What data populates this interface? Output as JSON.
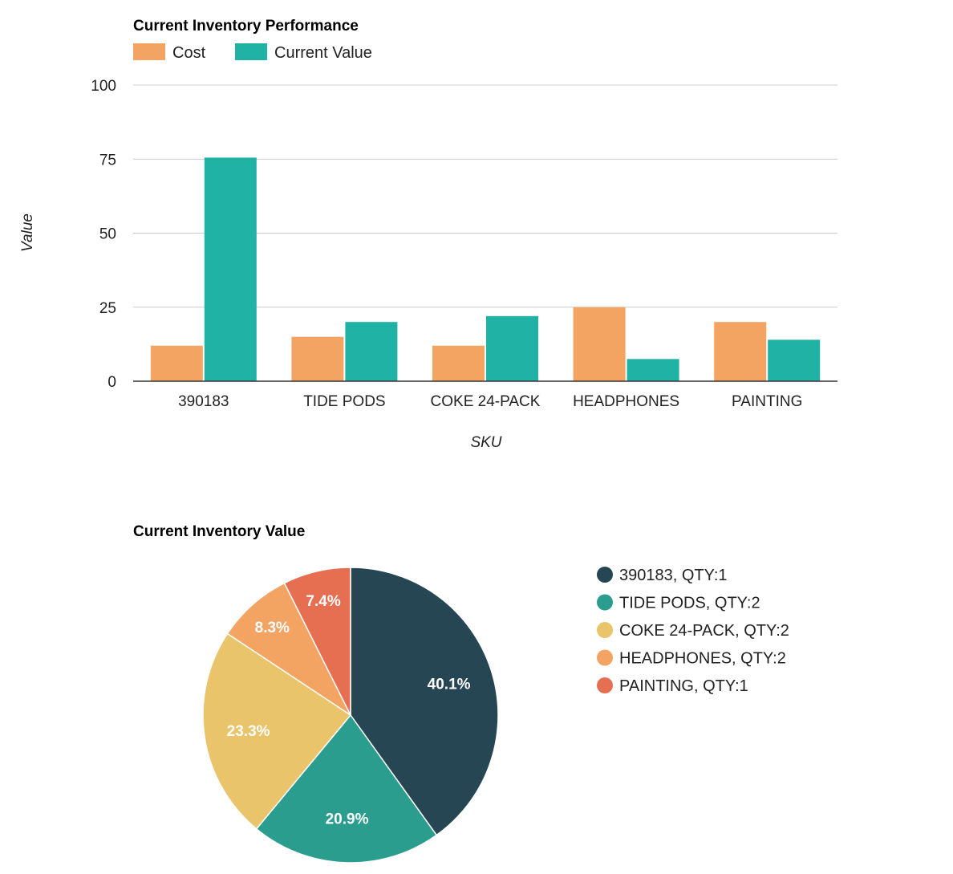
{
  "chart_data": [
    {
      "type": "bar",
      "title": "Current Inventory Performance",
      "xlabel": "SKU",
      "ylabel": "Value",
      "ylim": [
        0,
        100
      ],
      "yticks": [
        0,
        25,
        50,
        75,
        100
      ],
      "grid": true,
      "legend_position": "top-left",
      "categories": [
        "390183",
        "TIDE PODS",
        "COKE 24-PACK",
        "HEADPHONES",
        "PAINTING"
      ],
      "series": [
        {
          "name": "Cost",
          "color": "#f4a462",
          "values": [
            12,
            15,
            12,
            25,
            20
          ]
        },
        {
          "name": "Current Value",
          "color": "#21b2a6",
          "values": [
            75.5,
            20,
            22,
            7.5,
            14
          ]
        }
      ]
    },
    {
      "type": "pie",
      "title": "Current Inventory Value",
      "legend_position": "right",
      "slices": [
        {
          "label": "390183, QTY:1",
          "percent": 40.1,
          "percent_label": "40.1%",
          "color": "#264653"
        },
        {
          "label": "TIDE PODS, QTY:2",
          "percent": 20.9,
          "percent_label": "20.9%",
          "color": "#2a9d8f"
        },
        {
          "label": "COKE 24-PACK, QTY:2",
          "percent": 23.3,
          "percent_label": "23.3%",
          "color": "#e9c46a"
        },
        {
          "label": "HEADPHONES, QTY:2",
          "percent": 8.3,
          "percent_label": "8.3%",
          "color": "#f4a462"
        },
        {
          "label": "PAINTING, QTY:1",
          "percent": 7.4,
          "percent_label": "7.4%",
          "color": "#e76f51"
        }
      ]
    }
  ]
}
